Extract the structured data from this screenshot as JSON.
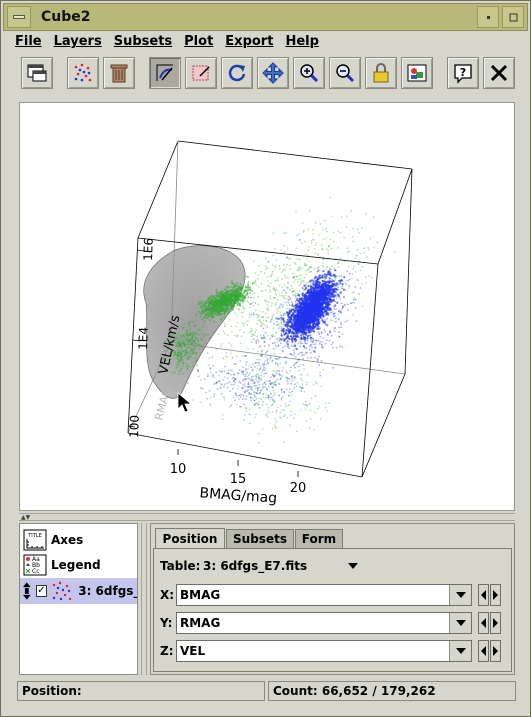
{
  "window": {
    "title": "Cube2"
  },
  "menubar": [
    "File",
    "Layers",
    "Subsets",
    "Plot",
    "Export",
    "Help"
  ],
  "toolbar": [
    {
      "name": "new-window-icon",
      "pressed": false
    },
    {
      "name": "subset-icon",
      "pressed": false
    },
    {
      "name": "trash-icon",
      "pressed": false
    },
    {
      "name": "draw-icon",
      "pressed": true
    },
    {
      "name": "blob-icon",
      "pressed": false
    },
    {
      "name": "rotate-icon",
      "pressed": false
    },
    {
      "name": "navigate-icon",
      "pressed": false
    },
    {
      "name": "zoom-in-icon",
      "pressed": false
    },
    {
      "name": "zoom-out-icon",
      "pressed": false
    },
    {
      "name": "lock-icon",
      "pressed": false
    },
    {
      "name": "picture-icon",
      "pressed": false
    },
    {
      "name": "help-icon",
      "pressed": false
    },
    {
      "name": "close-icon",
      "pressed": false
    }
  ],
  "plot": {
    "x_axis_label": "BMAG/mag",
    "x_ticks": [
      "10",
      "15",
      "20"
    ],
    "y_axis_label": "VEL/km/s",
    "y_ticks": [
      "100",
      "1E4",
      "1E6"
    ],
    "z_axis_label": "RMAG",
    "colors": {
      "series1": "#2233ee",
      "series2": "#33aa33",
      "blob": "#808080"
    }
  },
  "layers": [
    {
      "label": "Axes",
      "icon": "axes-icon",
      "selected": false
    },
    {
      "label": "Legend",
      "icon": "legend-icon",
      "selected": false
    },
    {
      "label": "3: 6dfgs_",
      "icon": "scatter-icon",
      "selected": true,
      "checked": true
    }
  ],
  "panel": {
    "tabs": [
      "Position",
      "Subsets",
      "Form"
    ],
    "active_tab": "Position",
    "table_label": "Table:",
    "table_value": "3: 6dfgs_E7.fits",
    "fields": [
      {
        "label": "X:",
        "value": "BMAG"
      },
      {
        "label": "Y:",
        "value": "RMAG"
      },
      {
        "label": "Z:",
        "value": "VEL"
      }
    ]
  },
  "status": {
    "position_label": "Position:",
    "count_text": "Count: 66,652 / 179,262"
  }
}
